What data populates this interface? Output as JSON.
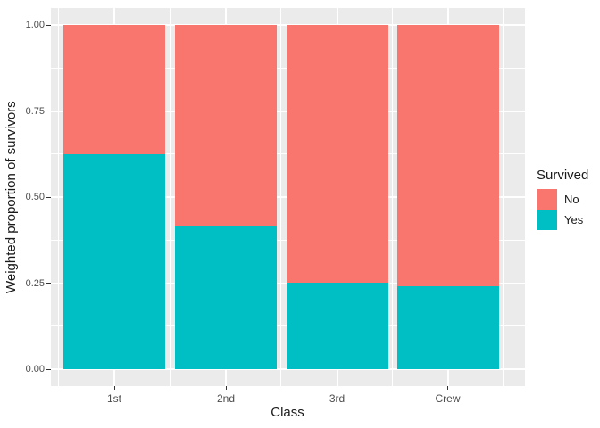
{
  "chart_data": {
    "type": "bar",
    "stacked": true,
    "xlabel": "Class",
    "ylabel": "Weighted proportion of survivors",
    "categories": [
      "1st",
      "2nd",
      "3rd",
      "Crew"
    ],
    "series": [
      {
        "name": "No",
        "color": "#F8766D",
        "values": [
          0.375,
          0.586,
          0.748,
          0.76
        ]
      },
      {
        "name": "Yes",
        "color": "#00BFC4",
        "values": [
          0.625,
          0.414,
          0.252,
          0.24
        ]
      }
    ],
    "legend": {
      "title": "Survived",
      "position": "right"
    },
    "ylim": [
      0,
      1
    ],
    "yticks": {
      "values": [
        0,
        0.25,
        0.5,
        0.75,
        1.0
      ],
      "labels": [
        "0.00",
        "0.25",
        "0.50",
        "0.75",
        "1.00"
      ]
    },
    "yticks_minor": [
      0.125,
      0.375,
      0.625,
      0.875
    ],
    "grid": "on",
    "colors": {
      "panel_background": "#EBEBEB",
      "gridline": "#FFFFFF",
      "tick_label": "#4D4D4D",
      "axis_title": "#1A1A1A",
      "tick_mark": "#333333"
    }
  }
}
